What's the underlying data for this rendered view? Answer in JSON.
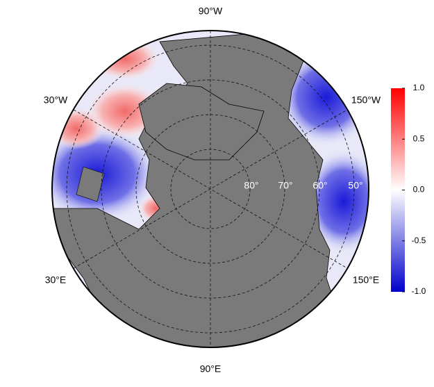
{
  "map": {
    "longitude_labels": [
      "90°W",
      "30°W",
      "150°W",
      "30°E",
      "150°E",
      "90°E"
    ],
    "latitude_labels": [
      "80°",
      "70°",
      "60°",
      "50°"
    ]
  },
  "colorbar": {
    "lim": [
      -1,
      1
    ],
    "ticks": [
      {
        "value": 1,
        "label": "1.0"
      },
      0.5,
      {
        "value": 0,
        "label": "0.0"
      },
      -0.5,
      {
        "value": -1,
        "label": "-1.0"
      }
    ],
    "colors": [
      "#0000cc",
      "#ffffff",
      "#ff0000"
    ]
  }
}
